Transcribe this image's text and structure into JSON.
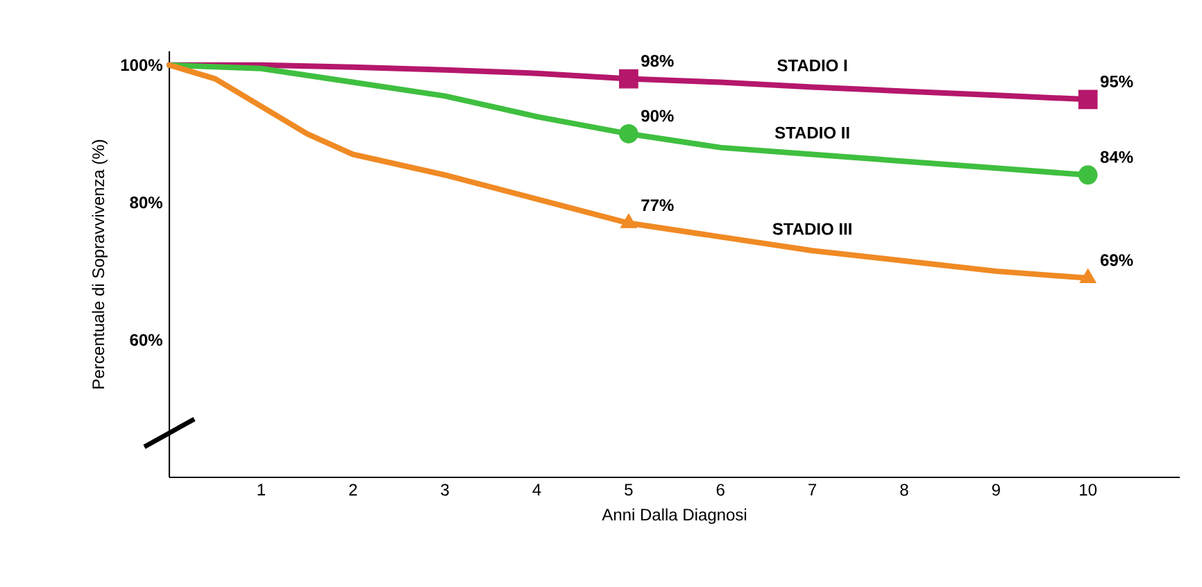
{
  "chart_data": {
    "type": "line",
    "xlabel": "Anni Dalla Diagnosi",
    "ylabel": "Percentuale di Sopravvivenza (%)",
    "xlim": [
      0,
      11
    ],
    "ylim": [
      40,
      102
    ],
    "xticks": [
      1,
      2,
      3,
      4,
      5,
      6,
      7,
      8,
      9,
      10
    ],
    "yticks": [
      {
        "value": 60,
        "label": "60%"
      },
      {
        "value": 80,
        "label": "80%"
      },
      {
        "value": 100,
        "label": "100%"
      }
    ],
    "series": [
      {
        "name": "STADIO I",
        "color": "#b5176b",
        "marker": "none",
        "x": [
          0,
          1,
          2,
          3,
          4,
          5,
          6,
          7,
          8,
          9,
          10
        ],
        "values": [
          100,
          100,
          99.7,
          99.3,
          98.8,
          98,
          97.5,
          96.8,
          96.2,
          95.6,
          95
        ]
      },
      {
        "name": "STADIO II",
        "color": "#3fbf3f",
        "marker": "none",
        "x": [
          0,
          1,
          2,
          3,
          4,
          5,
          6,
          7,
          8,
          9,
          10
        ],
        "values": [
          100,
          99.5,
          97.5,
          95.5,
          92.5,
          90,
          88,
          87,
          86,
          85,
          84
        ]
      },
      {
        "name": "STADIO III",
        "color": "#f08a24",
        "marker": "none",
        "x": [
          0,
          0.5,
          1,
          1.5,
          2,
          3,
          4,
          5,
          6,
          7,
          8,
          9,
          10
        ],
        "values": [
          100,
          98,
          94,
          90,
          87,
          84,
          80.5,
          77,
          75,
          73,
          71.5,
          70,
          69
        ]
      },
      {
        "type": "scatter",
        "color": "#b5176b",
        "marker": "square",
        "x": [
          5,
          10
        ],
        "values": [
          98,
          95
        ],
        "value_labels": [
          "98%",
          "95%"
        ]
      },
      {
        "type": "scatter",
        "color": "#3fbf3f",
        "marker": "circle",
        "x": [
          5,
          10
        ],
        "values": [
          90,
          84
        ],
        "value_labels": [
          "90%",
          "84%"
        ]
      },
      {
        "type": "scatter",
        "color": "#f08a24",
        "marker": "triangle",
        "x": [
          5,
          10
        ],
        "values": [
          77,
          69
        ],
        "value_labels": [
          "77%",
          "69%"
        ]
      }
    ]
  }
}
